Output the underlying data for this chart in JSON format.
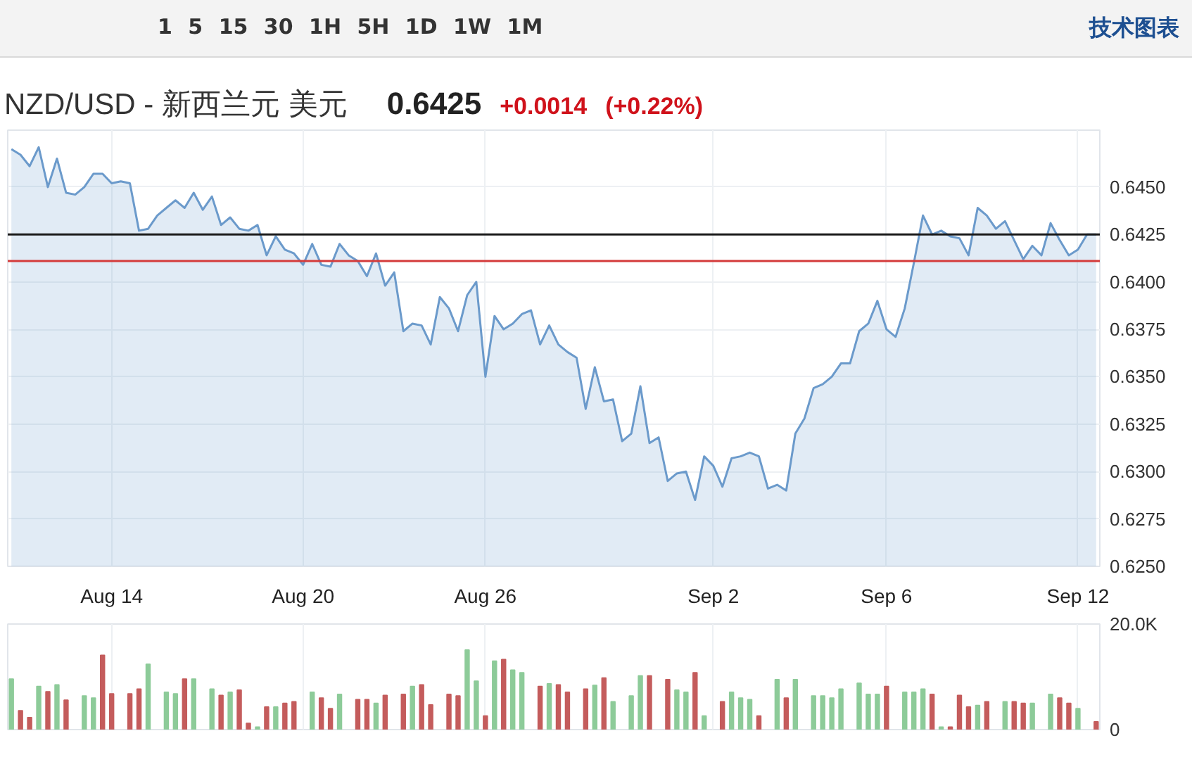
{
  "chart_data": [
    {
      "type": "area",
      "title": "NZD/USD - 新西兰元 美元",
      "subtitle": "0.6425 +0.0014 (+0.22%)",
      "annotations": [
        "1 5 15 30 1H 5H 1D 1W 1M",
        "技术图表"
      ],
      "categories": [
        null,
        null,
        null,
        null,
        null,
        null,
        null,
        null,
        null,
        null,
        null,
        "Aug 14",
        null,
        null,
        null,
        null,
        null,
        null,
        null,
        null,
        null,
        null,
        null,
        null,
        null,
        null,
        null,
        null,
        null,
        null,
        null,
        null,
        "Aug 20",
        null,
        null,
        null,
        null,
        null,
        null,
        null,
        null,
        null,
        null,
        null,
        null,
        null,
        null,
        null,
        null,
        null,
        null,
        null,
        "Aug 26",
        null,
        null,
        null,
        null,
        null,
        null,
        null,
        null,
        null,
        null,
        null,
        null,
        null,
        null,
        null,
        null,
        null,
        null,
        null,
        null,
        null,
        null,
        null,
        null,
        "Sep 2",
        null,
        null,
        null,
        null,
        null,
        null,
        null,
        null,
        null,
        null,
        null,
        null,
        null,
        null,
        null,
        null,
        null,
        null,
        "Sep 6",
        null,
        null,
        null,
        null,
        null,
        null,
        null,
        null,
        null,
        null,
        null,
        null,
        null,
        null,
        null,
        null,
        null,
        null,
        null,
        null,
        "Sep 12",
        null,
        null
      ],
      "series": [
        {
          "color": "#6b9acb",
          "values": [
            0.647,
            0.6467,
            0.6461,
            0.6471,
            0.645,
            0.6465,
            0.6447,
            0.6446,
            0.645,
            0.6457,
            0.6457,
            0.6452,
            0.6453,
            0.6452,
            0.6427,
            0.6428,
            0.6435,
            0.6439,
            0.6443,
            0.6439,
            0.6447,
            0.6438,
            0.6445,
            0.643,
            0.6434,
            0.6428,
            0.6427,
            0.643,
            0.6414,
            0.6424,
            0.6417,
            0.6415,
            0.6409,
            0.642,
            0.6409,
            0.6408,
            0.642,
            0.6414,
            0.6411,
            0.6403,
            0.6415,
            0.6398,
            0.6405,
            0.6374,
            0.6378,
            0.6377,
            0.6367,
            0.6392,
            0.6386,
            0.6374,
            0.6393,
            0.64,
            0.635,
            0.6382,
            0.6375,
            0.6378,
            0.6383,
            0.6385,
            0.6367,
            0.6377,
            0.6367,
            0.6363,
            0.636,
            0.6333,
            0.6355,
            0.6337,
            0.6338,
            0.6316,
            0.632,
            0.6345,
            0.6315,
            0.6318,
            0.6295,
            0.6299,
            0.63,
            0.6285,
            0.6308,
            0.6303,
            0.6292,
            0.6307,
            0.6308,
            0.631,
            0.6308,
            0.6291,
            0.6293,
            0.629,
            0.632,
            0.6328,
            0.6344,
            0.6346,
            0.635,
            0.6357,
            0.6357,
            0.6374,
            0.6378,
            0.639,
            0.6375,
            0.6371,
            0.6386,
            0.641,
            0.6435,
            0.6425,
            0.6427,
            0.6424,
            0.6423,
            0.6414,
            0.6439,
            0.6435,
            0.6428,
            0.6432,
            0.6422,
            0.6412,
            0.6419,
            0.6414,
            0.6431,
            0.6422,
            0.6414,
            0.6417,
            0.6425,
            0.6425
          ]
        }
      ],
      "ylim": [
        0.625,
        0.648
      ],
      "yticks": [
        {
          "value": 0.625,
          "label": "0.6250"
        },
        0.6275,
        {
          "value": 0.63,
          "label": "0.6300"
        },
        0.6325,
        {
          "value": 0.635,
          "label": "0.6350"
        },
        0.6375,
        {
          "value": 0.64,
          "label": "0.6400"
        },
        {
          "value": 0.645,
          "label": "0.6450"
        }
      ],
      "grid": true,
      "ref_lines": [
        {
          "axis": "y",
          "value": 0.6425,
          "label": "0.6425",
          "color": "#1a1a1a"
        },
        {
          "axis": "y",
          "value": 0.6411,
          "color": "#d43b3b"
        }
      ]
    },
    {
      "type": "bar",
      "categories": [
        null,
        null,
        null,
        null,
        null,
        null,
        null,
        null,
        null,
        null,
        null,
        null,
        null,
        null,
        null,
        null,
        null,
        null,
        null,
        null,
        null,
        null,
        null,
        null,
        null,
        null,
        null,
        null,
        null,
        null,
        null,
        null,
        null,
        null,
        null,
        null,
        null,
        null,
        null,
        null,
        null,
        null,
        null,
        null,
        null,
        null,
        null,
        null,
        null,
        null,
        null,
        null,
        null,
        null,
        null,
        null,
        null,
        null,
        null,
        null,
        null,
        null,
        null,
        null,
        null,
        null,
        null,
        null,
        null,
        null,
        null,
        null,
        null,
        null,
        null,
        null,
        null,
        null,
        null,
        null,
        null,
        null,
        null,
        null,
        null,
        null,
        null,
        null,
        null,
        null,
        null,
        null,
        null,
        null,
        null,
        null,
        null,
        null,
        null,
        null,
        null,
        null,
        null,
        null,
        null,
        null,
        null,
        null,
        null,
        null,
        null,
        null,
        null,
        null,
        null,
        null,
        null,
        null,
        null,
        null
      ],
      "values": [
        9600,
        3600,
        2300,
        8200,
        7200,
        8500,
        5600,
        null,
        6400,
        6000,
        14100,
        6800,
        null,
        6800,
        7700,
        12400,
        null,
        7100,
        6800,
        9600,
        9600,
        null,
        7700,
        6500,
        7100,
        7500,
        1200,
        500,
        4300,
        4300,
        5000,
        5300,
        null,
        7100,
        6000,
        4000,
        6700,
        null,
        5700,
        5700,
        5000,
        6500,
        null,
        6700,
        8200,
        8500,
        4700,
        null,
        6700,
        6400,
        15100,
        9200,
        2600,
        13000,
        13300,
        11300,
        10800,
        null,
        8200,
        8700,
        8500,
        7100,
        null,
        7700,
        8400,
        9800,
        5300,
        null,
        6400,
        10200,
        10200,
        null,
        9500,
        7500,
        7100,
        10800,
        2600,
        null,
        5300,
        7100,
        6000,
        5700,
        2600,
        null,
        9500,
        6000,
        9500,
        null,
        6400,
        6400,
        6000,
        7700,
        null,
        8800,
        6700,
        6700,
        8200,
        null,
        7100,
        7100,
        7700,
        6700,
        500,
        500,
        6500,
        4300,
        4600,
        5300,
        null,
        5300,
        5300,
        5000,
        5000,
        null,
        6700,
        6000,
        5000,
        4000,
        null,
        1500
      ],
      "colors": [
        "#8dcb99",
        "#c45c5c",
        "#c45c5c",
        "#8dcb99",
        "#c45c5c",
        "#8dcb99",
        "#c45c5c",
        null,
        "#8dcb99",
        "#8dcb99",
        "#c45c5c",
        "#c45c5c",
        null,
        "#c45c5c",
        "#c45c5c",
        "#8dcb99",
        null,
        "#8dcb99",
        "#8dcb99",
        "#c45c5c",
        "#8dcb99",
        null,
        "#8dcb99",
        "#c45c5c",
        "#8dcb99",
        "#c45c5c",
        "#c45c5c",
        "#8dcb99",
        "#c45c5c",
        "#8dcb99",
        "#c45c5c",
        "#c45c5c",
        null,
        "#8dcb99",
        "#c45c5c",
        "#c45c5c",
        "#8dcb99",
        null,
        "#c45c5c",
        "#c45c5c",
        "#8dcb99",
        "#c45c5c",
        null,
        "#c45c5c",
        "#8dcb99",
        "#c45c5c",
        "#c45c5c",
        null,
        "#c45c5c",
        "#c45c5c",
        "#8dcb99",
        "#8dcb99",
        "#c45c5c",
        "#8dcb99",
        "#c45c5c",
        "#8dcb99",
        "#8dcb99",
        null,
        "#c45c5c",
        "#8dcb99",
        "#c45c5c",
        "#c45c5c",
        null,
        "#c45c5c",
        "#8dcb99",
        "#c45c5c",
        "#8dcb99",
        null,
        "#8dcb99",
        "#8dcb99",
        "#c45c5c",
        null,
        "#c45c5c",
        "#8dcb99",
        "#8dcb99",
        "#c45c5c",
        "#8dcb99",
        null,
        "#c45c5c",
        "#8dcb99",
        "#8dcb99",
        "#8dcb99",
        "#c45c5c",
        null,
        "#8dcb99",
        "#c45c5c",
        "#8dcb99",
        null,
        "#8dcb99",
        "#8dcb99",
        "#8dcb99",
        "#8dcb99",
        null,
        "#8dcb99",
        "#8dcb99",
        "#8dcb99",
        "#c45c5c",
        null,
        "#8dcb99",
        "#8dcb99",
        "#8dcb99",
        "#c45c5c",
        "#8dcb99",
        "#c45c5c",
        "#c45c5c",
        "#c45c5c",
        "#8dcb99",
        "#c45c5c",
        null,
        "#8dcb99",
        "#c45c5c",
        "#c45c5c",
        "#8dcb99",
        null,
        "#8dcb99",
        "#c45c5c",
        "#c45c5c",
        "#8dcb99",
        null,
        "#c45c5c"
      ],
      "ylim": [
        0,
        20000
      ],
      "yticks": [
        0,
        {
          "value": 20000,
          "label": "20.0K"
        }
      ],
      "grid": true,
      "tick_labels": "y"
    }
  ]
}
